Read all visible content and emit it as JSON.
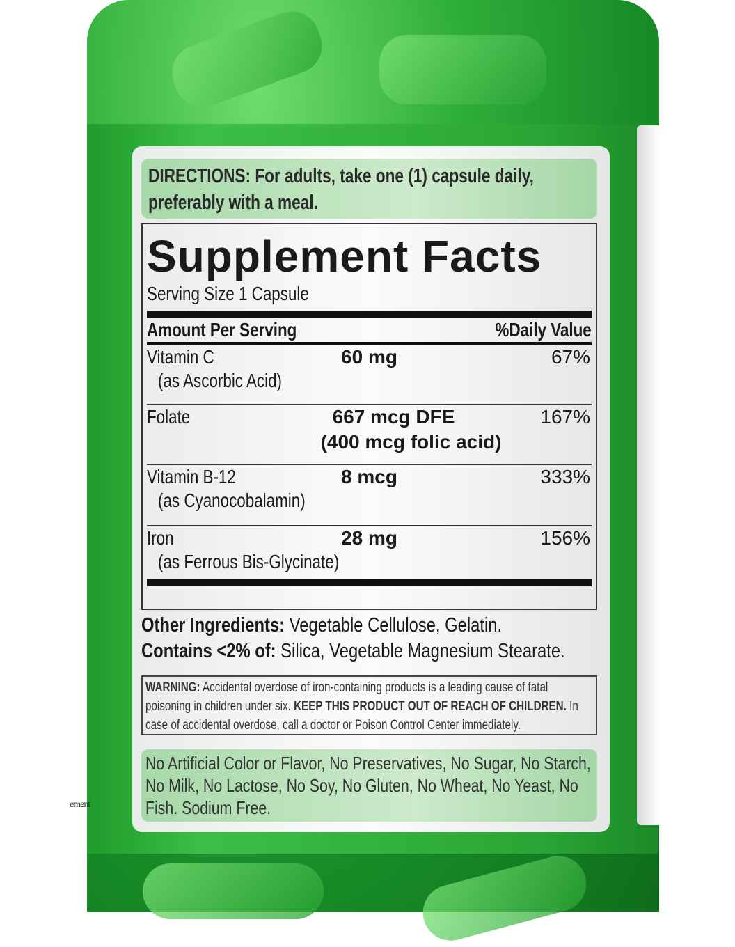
{
  "directions": "DIRECTIONS: For adults, take one (1) capsule daily, preferably with a meal.",
  "directions_lines": [
    "DIRECTIONS: For adults, take one (1) capsule daily,",
    "preferably with a meal."
  ],
  "facts": {
    "title": "Supplement Facts",
    "serving_size": "Serving Size 1 Capsule",
    "header_amount": "Amount Per Serving",
    "header_dv": "%Daily Value",
    "rows": [
      {
        "name": "Vitamin C",
        "amount": "60 mg",
        "dv": "67%",
        "sub": "(as Ascorbic Acid)"
      },
      {
        "name": "Folate",
        "amount": "667  mcg DFE",
        "dv": "167%",
        "sub": "(400 mcg folic acid)"
      },
      {
        "name": "Vitamin B-12",
        "amount": "8 mcg",
        "dv": "333%",
        "sub": "(as Cyanocobalamin)"
      },
      {
        "name": "Iron",
        "amount": "28 mg",
        "dv": "156%",
        "sub": "(as Ferrous Bis-Glycinate)"
      }
    ]
  },
  "other": {
    "label": "Other Ingredients:",
    "text": "Vegetable Cellulose, Gelatin.",
    "contains_label": "Contains <2% of:",
    "contains_text": "Silica, Vegetable Magnesium Stearate."
  },
  "warning": {
    "label": "WARNING:",
    "text1": "Accidental overdose of iron-containing products is a leading cause of fatal poisoning in children under six.",
    "bold": "KEEP THIS PRODUCT OUT OF REACH OF CHILDREN.",
    "text2": "In case of accidental overdose, call a doctor or Poison Control Center immediately."
  },
  "free_from": "No Artificial Color or Flavor, No Preservatives, No Sugar, No Starch, No Milk, No Lactose, No Soy, No Gluten, No Wheat, No Yeast, No Fish. Sodium Free.",
  "side_text": "ement",
  "colors": {
    "bottle": "#2aa535",
    "label_green": "#bfe3bf",
    "text": "#1a1a1a"
  }
}
